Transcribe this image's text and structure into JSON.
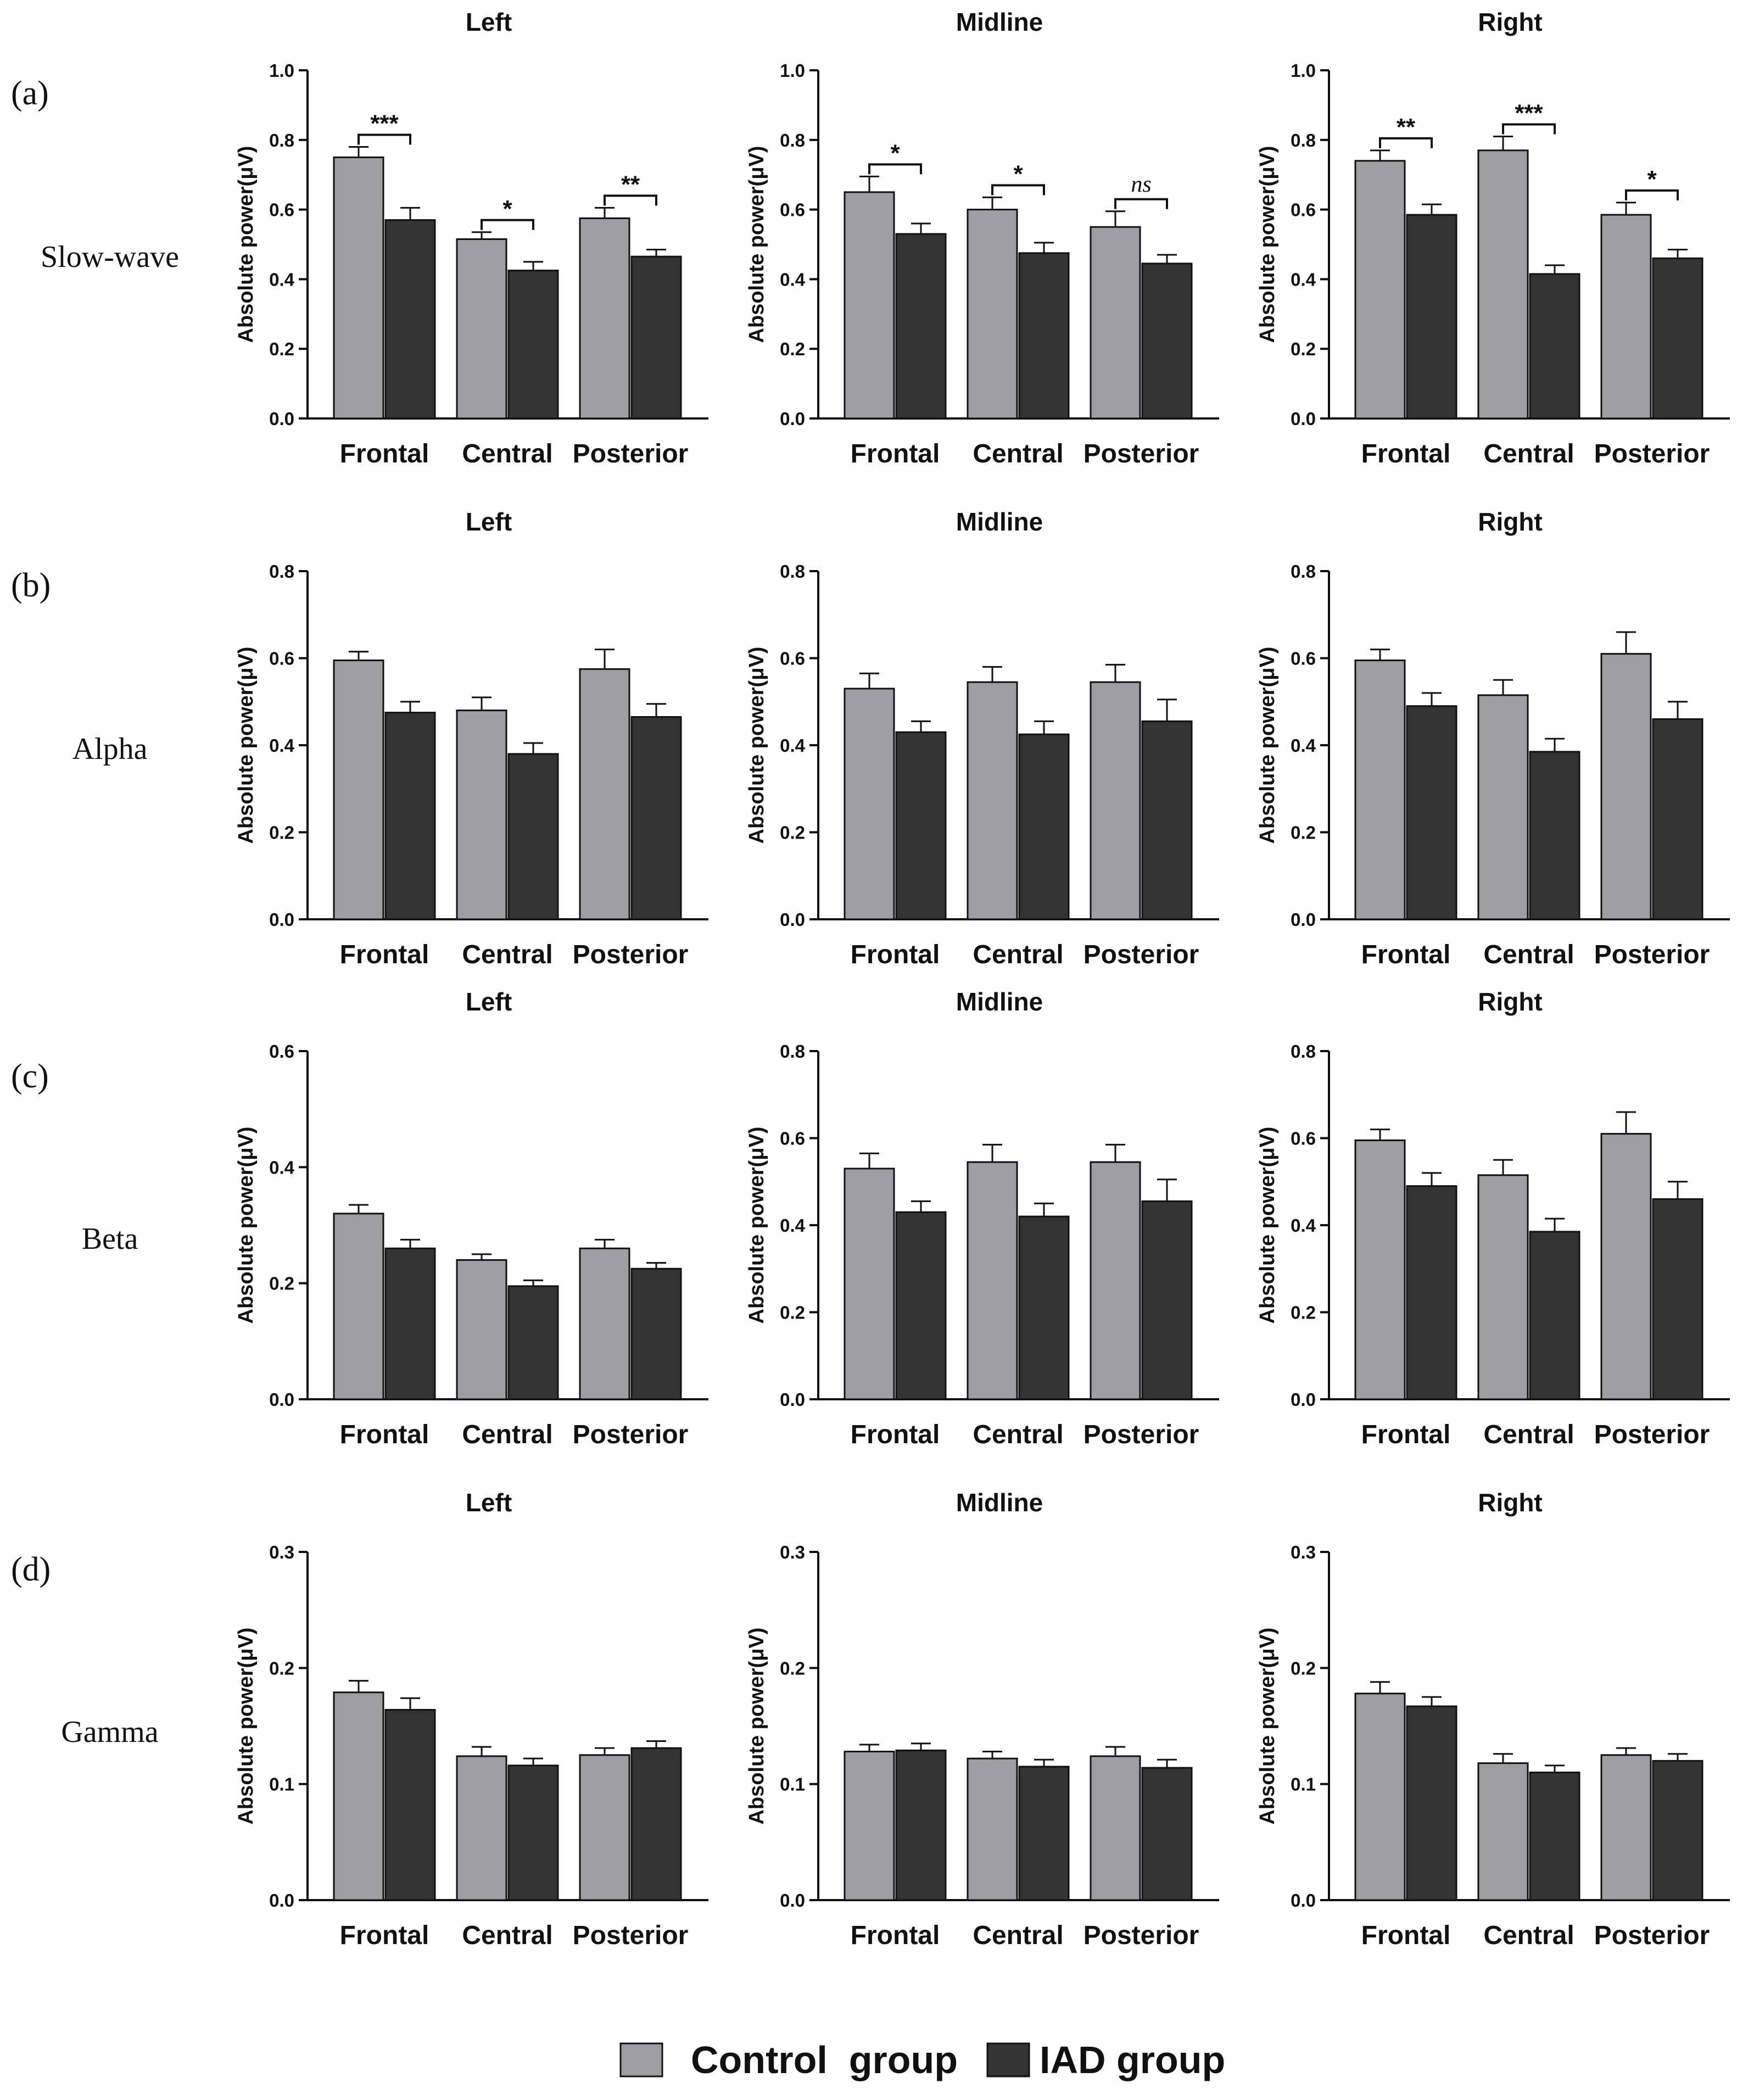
{
  "legend": {
    "control_label": "Control  group",
    "iad_label": "IAD group"
  },
  "colors": {
    "control": "#9e9ea2",
    "iad": "#333333",
    "axis": "#111111"
  },
  "chart_data": [
    {
      "row_letter": "(a)",
      "band": "Slow-wave",
      "panel": "Left",
      "type": "bar",
      "categories": [
        "Frontal",
        "Central",
        "Posterior"
      ],
      "ylabel": "Absolute power(μV)",
      "ylim": [
        0,
        1.0
      ],
      "yticks": [
        "0.0",
        "0.2",
        "0.4",
        "0.6",
        "0.8",
        "1.0"
      ],
      "series": [
        {
          "name": "Control group",
          "values": [
            0.75,
            0.515,
            0.575
          ],
          "errors": [
            0.03,
            0.02,
            0.03
          ]
        },
        {
          "name": "IAD group",
          "values": [
            0.57,
            0.425,
            0.465
          ],
          "errors": [
            0.035,
            0.025,
            0.02
          ]
        }
      ],
      "significance": [
        "***",
        "*",
        "**"
      ]
    },
    {
      "row_letter": "",
      "band": "",
      "panel": "Midline",
      "type": "bar",
      "categories": [
        "Frontal",
        "Central",
        "Posterior"
      ],
      "ylabel": "Absolute power(μV)",
      "ylim": [
        0,
        1.0
      ],
      "yticks": [
        "0.0",
        "0.2",
        "0.4",
        "0.6",
        "0.8",
        "1.0"
      ],
      "series": [
        {
          "name": "Control group",
          "values": [
            0.65,
            0.6,
            0.55
          ],
          "errors": [
            0.045,
            0.035,
            0.045
          ]
        },
        {
          "name": "IAD group",
          "values": [
            0.53,
            0.475,
            0.445
          ],
          "errors": [
            0.03,
            0.03,
            0.025
          ]
        }
      ],
      "significance": [
        "*",
        "*",
        "ns"
      ]
    },
    {
      "row_letter": "",
      "band": "",
      "panel": "Right",
      "type": "bar",
      "categories": [
        "Frontal",
        "Central",
        "Posterior"
      ],
      "ylabel": "Absolute power(μV)",
      "ylim": [
        0,
        1.0
      ],
      "yticks": [
        "0.0",
        "0.2",
        "0.4",
        "0.6",
        "0.8",
        "1.0"
      ],
      "series": [
        {
          "name": "Control group",
          "values": [
            0.74,
            0.77,
            0.585
          ],
          "errors": [
            0.03,
            0.04,
            0.035
          ]
        },
        {
          "name": "IAD group",
          "values": [
            0.585,
            0.415,
            0.46
          ],
          "errors": [
            0.03,
            0.025,
            0.025
          ]
        }
      ],
      "significance": [
        "**",
        "***",
        "*"
      ]
    },
    {
      "row_letter": "(b)",
      "band": "Alpha",
      "panel": "Left",
      "type": "bar",
      "categories": [
        "Frontal",
        "Central",
        "Posterior"
      ],
      "ylabel": "Absolute power(μV)",
      "ylim": [
        0,
        0.8
      ],
      "yticks": [
        "0.0",
        "0.2",
        "0.4",
        "0.6",
        "0.8"
      ],
      "series": [
        {
          "name": "Control group",
          "values": [
            0.595,
            0.48,
            0.575
          ],
          "errors": [
            0.02,
            0.03,
            0.045
          ]
        },
        {
          "name": "IAD group",
          "values": [
            0.475,
            0.38,
            0.465
          ],
          "errors": [
            0.025,
            0.025,
            0.03
          ]
        }
      ],
      "significance": [
        "",
        "",
        ""
      ]
    },
    {
      "row_letter": "",
      "band": "",
      "panel": "Midline",
      "type": "bar",
      "categories": [
        "Frontal",
        "Central",
        "Posterior"
      ],
      "ylabel": "Absolute power(μV)",
      "ylim": [
        0,
        0.8
      ],
      "yticks": [
        "0.0",
        "0.2",
        "0.4",
        "0.6",
        "0.8"
      ],
      "series": [
        {
          "name": "Control group",
          "values": [
            0.53,
            0.545,
            0.545
          ],
          "errors": [
            0.035,
            0.035,
            0.04
          ]
        },
        {
          "name": "IAD group",
          "values": [
            0.43,
            0.425,
            0.455
          ],
          "errors": [
            0.025,
            0.03,
            0.05
          ]
        }
      ],
      "significance": [
        "",
        "",
        ""
      ]
    },
    {
      "row_letter": "",
      "band": "",
      "panel": "Right",
      "type": "bar",
      "categories": [
        "Frontal",
        "Central",
        "Posterior"
      ],
      "ylabel": "Absolute power(μV)",
      "ylim": [
        0,
        0.8
      ],
      "yticks": [
        "0.0",
        "0.2",
        "0.4",
        "0.6",
        "0.8"
      ],
      "series": [
        {
          "name": "Control group",
          "values": [
            0.595,
            0.515,
            0.61
          ],
          "errors": [
            0.025,
            0.035,
            0.05
          ]
        },
        {
          "name": "IAD group",
          "values": [
            0.49,
            0.385,
            0.46
          ],
          "errors": [
            0.03,
            0.03,
            0.04
          ]
        }
      ],
      "significance": [
        "",
        "",
        ""
      ]
    },
    {
      "row_letter": "(c)",
      "band": "Beta",
      "panel": "Left",
      "type": "bar",
      "categories": [
        "Frontal",
        "Central",
        "Posterior"
      ],
      "ylabel": "Absolute power(μV)",
      "ylim": [
        0,
        0.6
      ],
      "yticks": [
        "0.0",
        "0.2",
        "0.4",
        "0.6"
      ],
      "series": [
        {
          "name": "Control group",
          "values": [
            0.32,
            0.24,
            0.26
          ],
          "errors": [
            0.015,
            0.01,
            0.015
          ]
        },
        {
          "name": "IAD group",
          "values": [
            0.26,
            0.195,
            0.225
          ],
          "errors": [
            0.015,
            0.01,
            0.01
          ]
        }
      ],
      "significance": [
        "",
        "",
        ""
      ]
    },
    {
      "row_letter": "",
      "band": "",
      "panel": "Midline",
      "type": "bar",
      "categories": [
        "Frontal",
        "Central",
        "Posterior"
      ],
      "ylabel": "Absolute power(μV)",
      "ylim": [
        0,
        0.8
      ],
      "yticks": [
        "0.0",
        "0.2",
        "0.4",
        "0.6",
        "0.8"
      ],
      "series": [
        {
          "name": "Control group",
          "values": [
            0.53,
            0.545,
            0.545
          ],
          "errors": [
            0.035,
            0.04,
            0.04
          ]
        },
        {
          "name": "IAD group",
          "values": [
            0.43,
            0.42,
            0.455
          ],
          "errors": [
            0.025,
            0.03,
            0.05
          ]
        }
      ],
      "significance": [
        "",
        "",
        ""
      ]
    },
    {
      "row_letter": "",
      "band": "",
      "panel": "Right",
      "type": "bar",
      "categories": [
        "Frontal",
        "Central",
        "Posterior"
      ],
      "ylabel": "Absolute power(μV)",
      "ylim": [
        0,
        0.8
      ],
      "yticks": [
        "0.0",
        "0.2",
        "0.4",
        "0.6",
        "0.8"
      ],
      "series": [
        {
          "name": "Control group",
          "values": [
            0.595,
            0.515,
            0.61
          ],
          "errors": [
            0.025,
            0.035,
            0.05
          ]
        },
        {
          "name": "IAD group",
          "values": [
            0.49,
            0.385,
            0.46
          ],
          "errors": [
            0.03,
            0.03,
            0.04
          ]
        }
      ],
      "significance": [
        "",
        "",
        ""
      ]
    },
    {
      "row_letter": "(d)",
      "band": "Gamma",
      "panel": "Left",
      "type": "bar",
      "categories": [
        "Frontal",
        "Central",
        "Posterior"
      ],
      "ylabel": "Absolute power(μV)",
      "ylim": [
        0,
        0.3
      ],
      "yticks": [
        "0.0",
        "0.1",
        "0.2",
        "0.3"
      ],
      "series": [
        {
          "name": "Control group",
          "values": [
            0.179,
            0.124,
            0.125
          ],
          "errors": [
            0.01,
            0.008,
            0.006
          ]
        },
        {
          "name": "IAD group",
          "values": [
            0.164,
            0.116,
            0.131
          ],
          "errors": [
            0.01,
            0.006,
            0.006
          ]
        }
      ],
      "significance": [
        "",
        "",
        ""
      ]
    },
    {
      "row_letter": "",
      "band": "",
      "panel": "Midline",
      "type": "bar",
      "categories": [
        "Frontal",
        "Central",
        "Posterior"
      ],
      "ylabel": "Absolute power(μV)",
      "ylim": [
        0,
        0.3
      ],
      "yticks": [
        "0.0",
        "0.1",
        "0.2",
        "0.3"
      ],
      "series": [
        {
          "name": "Control group",
          "values": [
            0.128,
            0.122,
            0.124
          ],
          "errors": [
            0.006,
            0.006,
            0.008
          ]
        },
        {
          "name": "IAD group",
          "values": [
            0.129,
            0.115,
            0.114
          ],
          "errors": [
            0.006,
            0.006,
            0.007
          ]
        }
      ],
      "significance": [
        "",
        "",
        ""
      ]
    },
    {
      "row_letter": "",
      "band": "",
      "panel": "Right",
      "type": "bar",
      "categories": [
        "Frontal",
        "Central",
        "Posterior"
      ],
      "ylabel": "Absolute power(μV)",
      "ylim": [
        0,
        0.3
      ],
      "yticks": [
        "0.0",
        "0.1",
        "0.2",
        "0.3"
      ],
      "series": [
        {
          "name": "Control group",
          "values": [
            0.178,
            0.118,
            0.125
          ],
          "errors": [
            0.01,
            0.008,
            0.006
          ]
        },
        {
          "name": "IAD group",
          "values": [
            0.167,
            0.11,
            0.12
          ],
          "errors": [
            0.008,
            0.006,
            0.006
          ]
        }
      ],
      "significance": [
        "",
        "",
        ""
      ]
    }
  ]
}
